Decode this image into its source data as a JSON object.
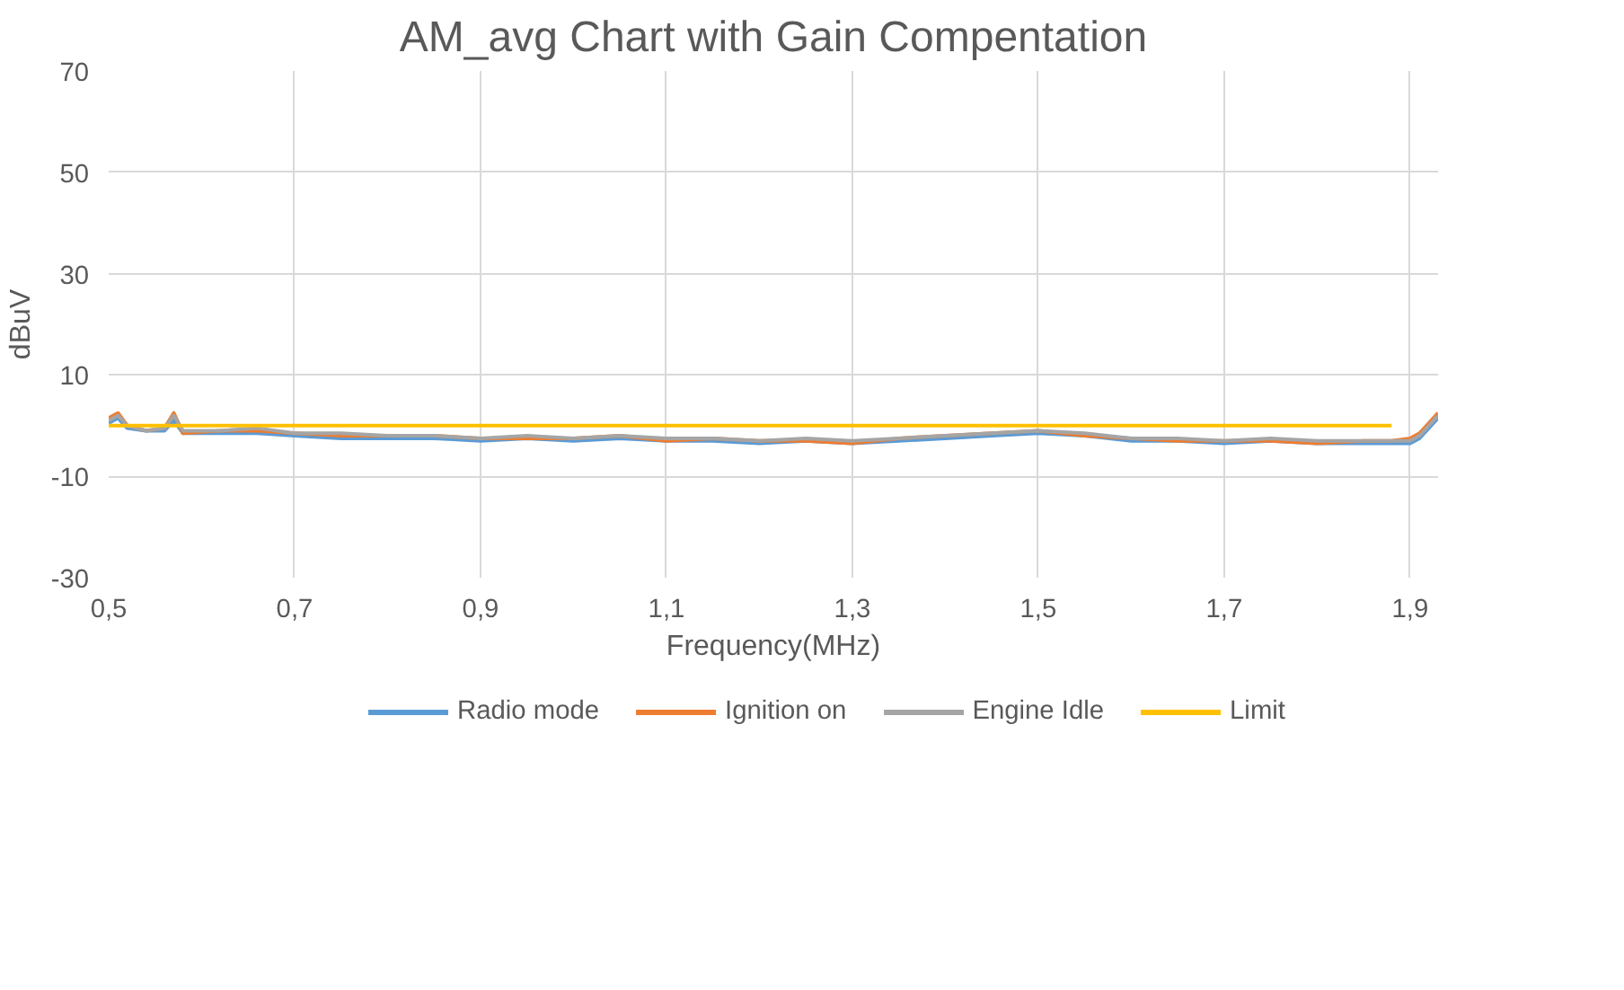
{
  "chart_data": {
    "type": "line",
    "title": "AM_avg Chart with Gain Compentation",
    "xlabel": "Frequency(MHz)",
    "ylabel": "dBuV",
    "xlim": [
      0.5,
      1.93
    ],
    "ylim": [
      -30,
      70
    ],
    "xticks": [
      {
        "value": 0.5,
        "label": "0,5"
      },
      {
        "value": 0.7,
        "label": "0,7"
      },
      {
        "value": 0.9,
        "label": "0,9"
      },
      {
        "value": 1.1,
        "label": "1,1"
      },
      {
        "value": 1.3,
        "label": "1,3"
      },
      {
        "value": 1.5,
        "label": "1,5"
      },
      {
        "value": 1.7,
        "label": "1,7"
      },
      {
        "value": 1.9,
        "label": "1,9"
      }
    ],
    "yticks": [
      -30,
      -10,
      10,
      30,
      50,
      70
    ],
    "grid": true,
    "legend": "bottom",
    "marker": "none",
    "line_style": "solid",
    "x": [
      0.5,
      0.51,
      0.52,
      0.54,
      0.56,
      0.57,
      0.58,
      0.62,
      0.66,
      0.7,
      0.75,
      0.8,
      0.85,
      0.9,
      0.95,
      1.0,
      1.05,
      1.1,
      1.15,
      1.2,
      1.25,
      1.3,
      1.35,
      1.4,
      1.45,
      1.5,
      1.55,
      1.6,
      1.65,
      1.7,
      1.75,
      1.8,
      1.85,
      1.88,
      1.9,
      1.91,
      1.92,
      1.93
    ],
    "series": [
      {
        "name": "Radio mode",
        "color": "#5b9bd5",
        "values": [
          0.5,
          1.5,
          -0.5,
          -1,
          -1,
          1,
          -1.5,
          -1.5,
          -1.5,
          -2,
          -2.5,
          -2.5,
          -2.5,
          -3,
          -2.5,
          -3,
          -2.5,
          -3,
          -3,
          -3.5,
          -3,
          -3.5,
          -3,
          -2.5,
          -2,
          -1.5,
          -2,
          -3,
          -3,
          -3.5,
          -3,
          -3.5,
          -3.5,
          -3.5,
          -3.5,
          -2.5,
          -0.5,
          1.5
        ]
      },
      {
        "name": "Ignition on",
        "color": "#ed7d31",
        "values": [
          1.5,
          2.5,
          0,
          -1,
          -0.5,
          2.5,
          -1.5,
          -1,
          -1,
          -1.5,
          -2,
          -2,
          -2,
          -2.5,
          -2.5,
          -2.5,
          -2,
          -3,
          -2.5,
          -3,
          -3,
          -3.5,
          -2.5,
          -2,
          -1.5,
          -1,
          -2,
          -2.5,
          -3,
          -3,
          -3,
          -3.5,
          -3,
          -3,
          -2.5,
          -1.5,
          0.5,
          2.5
        ]
      },
      {
        "name": "Engine Idle",
        "color": "#a5a5a5",
        "values": [
          1,
          2,
          0,
          -1,
          -0.5,
          2,
          -1,
          -1,
          -0.5,
          -1.5,
          -1.5,
          -2,
          -2,
          -2.5,
          -2,
          -2.5,
          -2,
          -2.5,
          -2.5,
          -3,
          -2.5,
          -3,
          -2.5,
          -2,
          -1.5,
          -1,
          -1.5,
          -2.5,
          -2.5,
          -3,
          -2.5,
          -3,
          -3,
          -3,
          -3,
          -2,
          0,
          2
        ]
      },
      {
        "name": "Limit",
        "color": "#ffc000",
        "x": [
          0.5,
          1.88
        ],
        "values": [
          0,
          0
        ]
      }
    ]
  }
}
